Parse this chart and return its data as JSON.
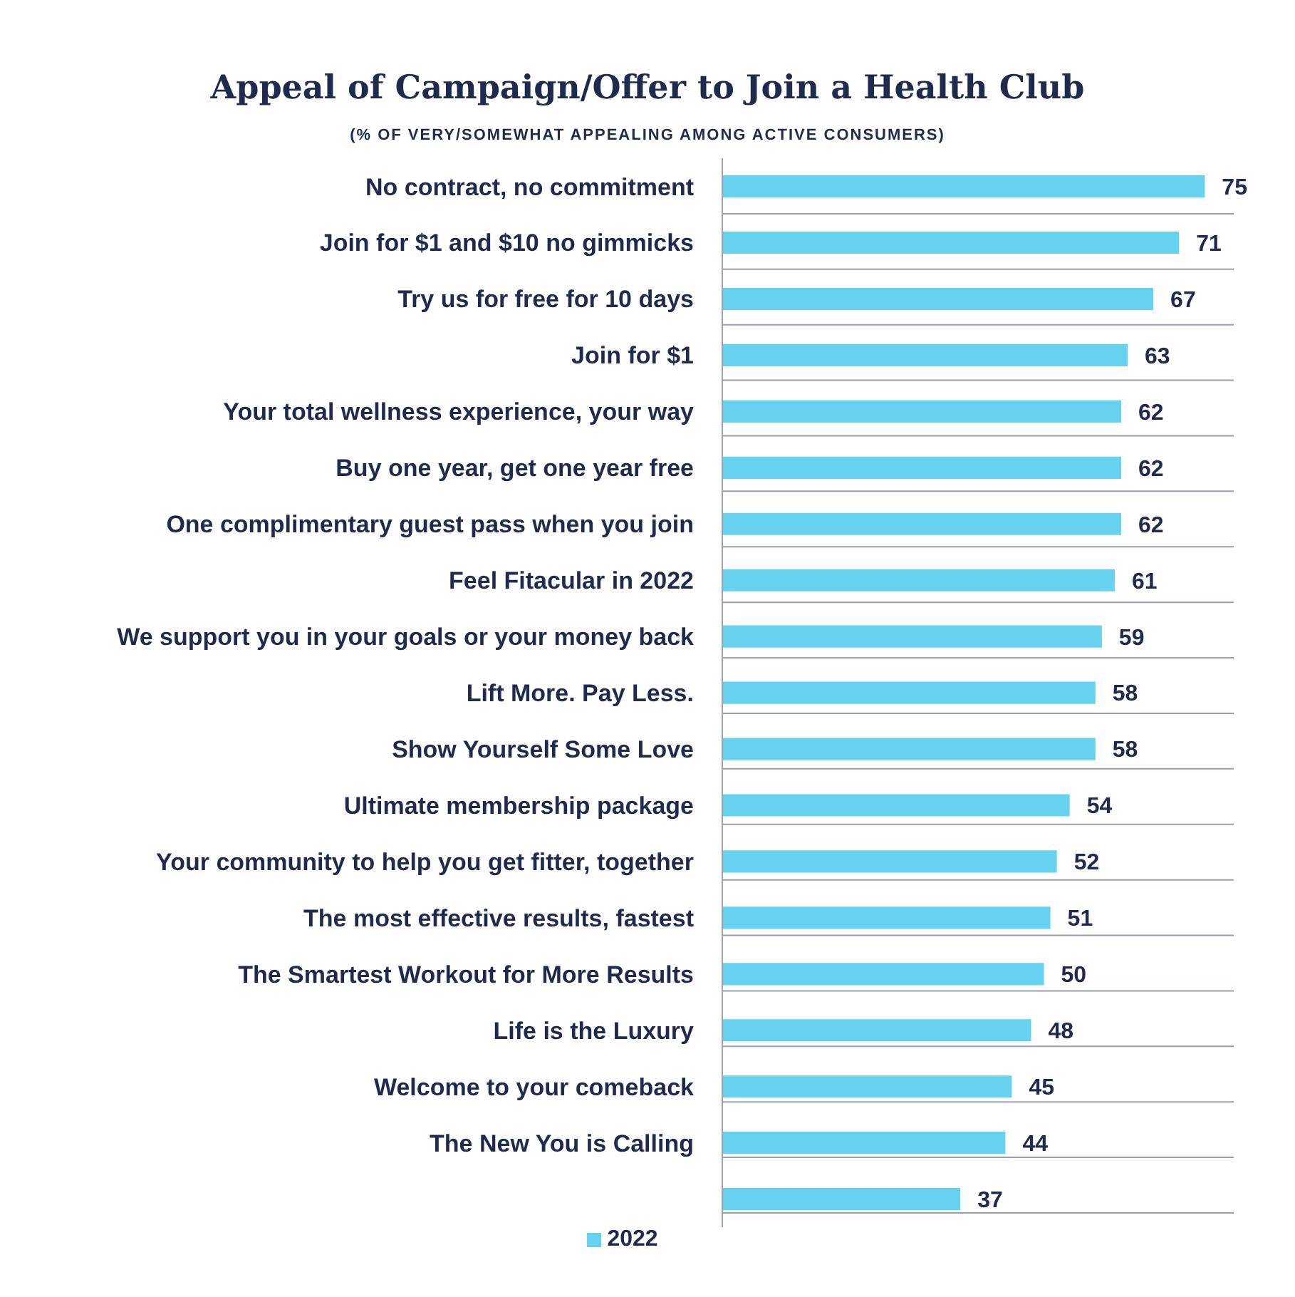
{
  "chart_data": {
    "type": "bar",
    "orientation": "horizontal",
    "title": "Appeal of Campaign/Offer to Join a Health Club",
    "subtitle": "(% OF VERY/SOMEWHAT APPEALING AMONG ACTIVE CONSUMERS)",
    "categories": [
      "No contract, no commitment",
      "Join for $1 and $10 no gimmicks",
      "Try us for free for 10 days",
      "Join for $1",
      "Your total wellness experience, your way",
      "Buy one year, get one year free",
      "One complimentary guest pass when you join",
      "Feel Fitacular in 2022",
      "We support you in your goals or your money back",
      "Lift More. Pay Less.",
      "Show Yourself Some Love",
      "Ultimate membership package",
      "Your community to help you get fitter, together",
      "The most effective results, fastest",
      "The Smartest Workout for More Results",
      "Life is the Luxury",
      "Welcome to your comeback",
      "The New You is Calling",
      null
    ],
    "series": [
      {
        "name": "2022",
        "color": "#66d2f0",
        "values": [
          75,
          71,
          67,
          63,
          62,
          62,
          62,
          61,
          59,
          58,
          58,
          54,
          52,
          51,
          50,
          48,
          45,
          44,
          37
        ]
      }
    ],
    "data_labels": true,
    "grid": "y",
    "legend": "bottom"
  }
}
